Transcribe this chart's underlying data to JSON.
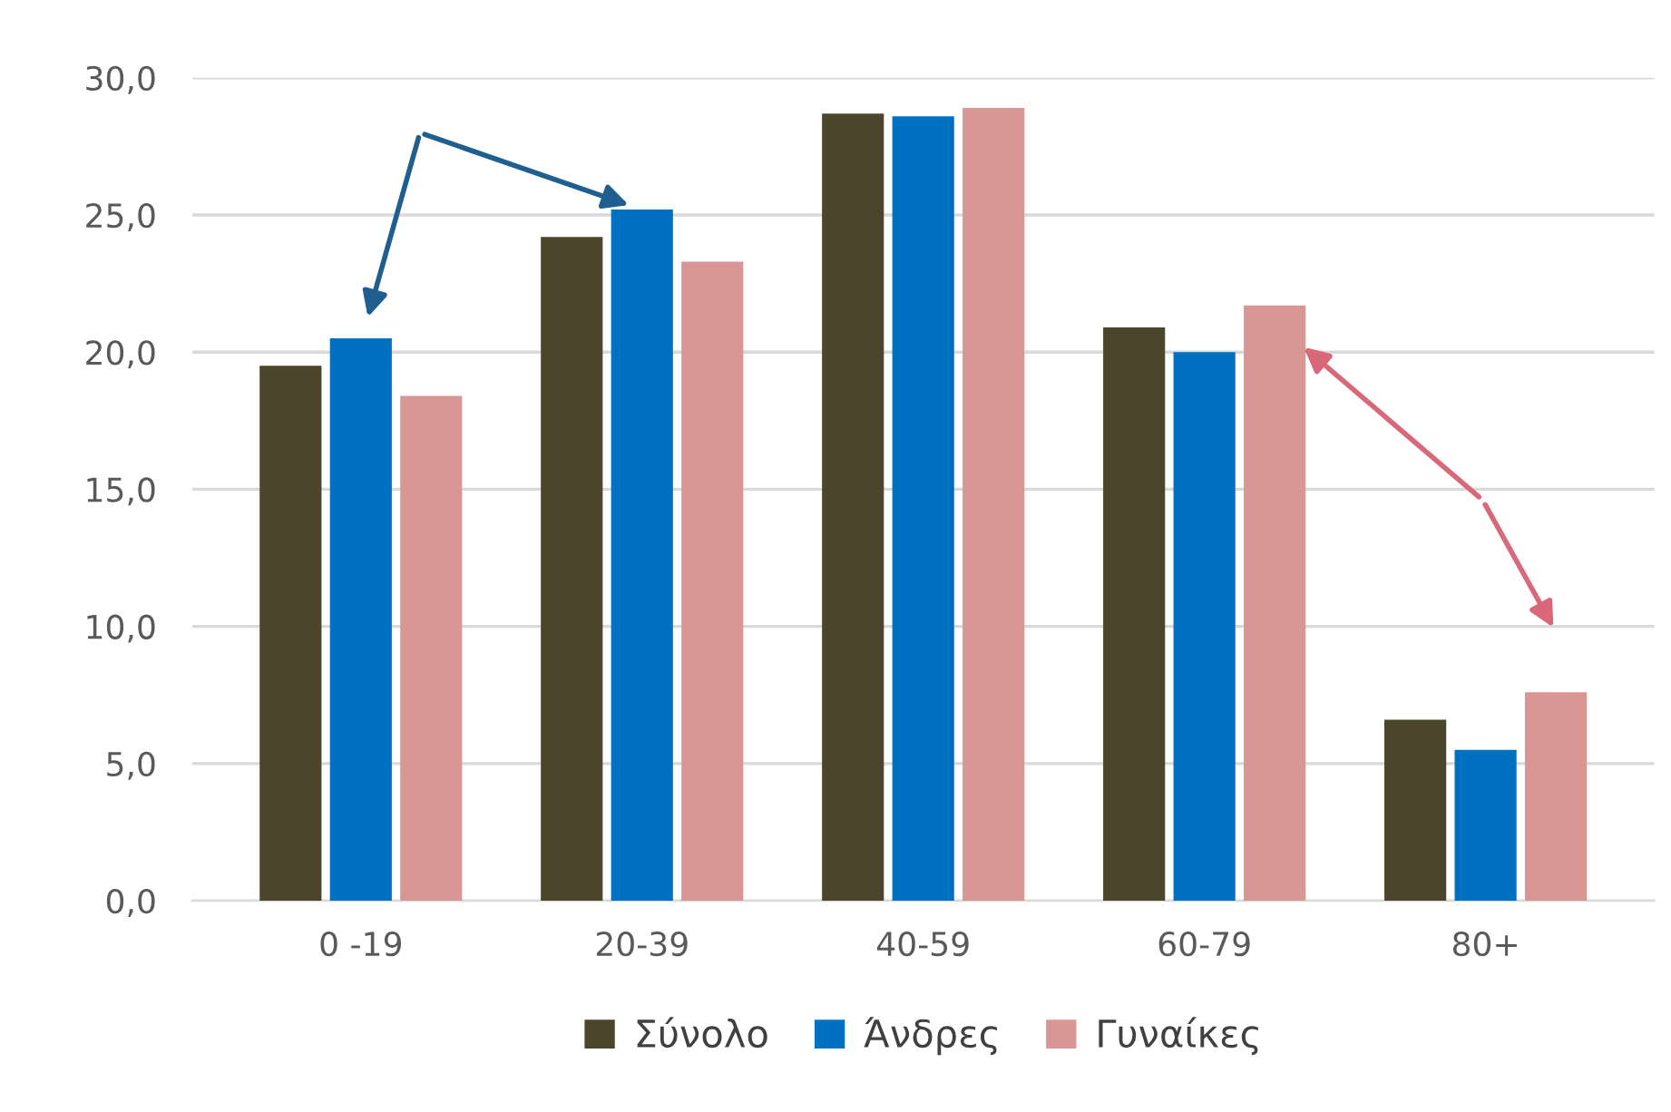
{
  "chart_data": {
    "type": "bar",
    "categories": [
      "0 -19",
      "20-39",
      "40-59",
      "60-79",
      "80+"
    ],
    "series": [
      {
        "name": "Σύνολο",
        "color": "#4b452c",
        "values": [
          19.5,
          24.2,
          28.7,
          20.9,
          6.6
        ]
      },
      {
        "name": "Άνδρες",
        "color": "#0070c0",
        "values": [
          20.5,
          25.2,
          28.6,
          20.0,
          5.5
        ]
      },
      {
        "name": "Γυναίκες",
        "color": "#da9694",
        "values": [
          18.4,
          23.3,
          28.9,
          21.7,
          7.6
        ]
      }
    ],
    "ylim": [
      0,
      30
    ],
    "yticks": [
      {
        "value": 0,
        "label": "0,0"
      },
      {
        "value": 5,
        "label": "5,0"
      },
      {
        "value": 10,
        "label": "10,0"
      },
      {
        "value": 15,
        "label": "15,0"
      },
      {
        "value": 20,
        "label": "20,0"
      },
      {
        "value": 25,
        "label": "25,0"
      },
      {
        "value": 30,
        "label": "30,0"
      }
    ],
    "grid": "y",
    "legend": "bottom"
  }
}
